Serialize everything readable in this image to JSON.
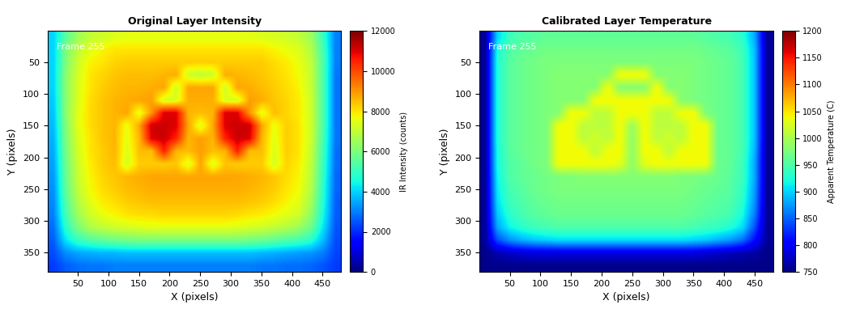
{
  "chart_data": [
    {
      "type": "heatmap",
      "title": "Original Layer Intensity",
      "x_label": "X (pixels)",
      "y_label": "Y (pixels)",
      "annotation": "Frame 255",
      "color": "jet",
      "x": [
        10,
        30,
        50,
        70,
        90,
        110,
        130,
        150,
        170,
        190,
        210,
        230,
        250,
        270,
        290,
        310,
        330,
        350,
        370,
        390,
        410,
        430,
        450,
        470
      ],
      "y": [
        10,
        30,
        50,
        70,
        90,
        110,
        130,
        150,
        170,
        190,
        210,
        230,
        250,
        270,
        290,
        310,
        330,
        350,
        370
      ],
      "xlim": [
        0.5,
        480.5
      ],
      "ylim": [
        380.5,
        0.5
      ],
      "xticks": [
        50,
        100,
        150,
        200,
        250,
        300,
        350,
        400,
        450
      ],
      "yticks": [
        50,
        100,
        150,
        200,
        250,
        300,
        350
      ],
      "colorbar": {
        "label": "IR Intensity (counts)",
        "lim": [
          0,
          12000
        ],
        "ticks": [
          0,
          2000,
          4000,
          6000,
          8000,
          10000,
          12000
        ]
      },
      "cells": [
        [
          4000,
          5500,
          6500,
          7000,
          7200,
          7400,
          7500,
          7500,
          7500,
          7500,
          7500,
          7500,
          7500,
          7500,
          7500,
          7500,
          7500,
          7400,
          7300,
          7200,
          7000,
          6500,
          5000,
          3000
        ],
        [
          4000,
          6000,
          7000,
          7500,
          7800,
          8000,
          8000,
          8000,
          8000,
          8000,
          8000,
          8000,
          8000,
          8000,
          8000,
          8000,
          8000,
          8000,
          7800,
          7600,
          7400,
          6800,
          5200,
          3000
        ],
        [
          4000,
          6000,
          7200,
          7800,
          8000,
          8200,
          8300,
          8300,
          8300,
          8300,
          8300,
          8300,
          8300,
          8300,
          8300,
          8300,
          8300,
          8300,
          8100,
          7900,
          7600,
          7000,
          5300,
          3000
        ],
        [
          4000,
          6200,
          7300,
          8000,
          8200,
          8400,
          8500,
          8500,
          8500,
          8600,
          8700,
          7200,
          7000,
          7200,
          8700,
          8600,
          8500,
          8400,
          8200,
          8000,
          7700,
          7100,
          5300,
          2900
        ],
        [
          4000,
          6200,
          7400,
          8000,
          8300,
          8500,
          8600,
          8600,
          8700,
          8800,
          7200,
          8800,
          8800,
          8800,
          7200,
          8800,
          8700,
          8500,
          8300,
          8100,
          7800,
          7100,
          5300,
          2900
        ],
        [
          3900,
          6200,
          7400,
          8100,
          8400,
          8600,
          8700,
          8800,
          8900,
          7300,
          7400,
          8700,
          8700,
          8700,
          7400,
          7300,
          8900,
          8700,
          8400,
          8200,
          7900,
          7200,
          5300,
          2900
        ],
        [
          3800,
          6200,
          7500,
          8100,
          8400,
          8600,
          8800,
          7500,
          9000,
          11000,
          11000,
          8600,
          8500,
          8600,
          11000,
          11000,
          9000,
          7500,
          8500,
          8200,
          7900,
          7200,
          5300,
          2900
        ],
        [
          3700,
          6100,
          7500,
          8100,
          8400,
          8600,
          7600,
          8800,
          11200,
          11200,
          11000,
          8800,
          7400,
          8800,
          11000,
          11200,
          11200,
          8800,
          7600,
          8300,
          8000,
          7200,
          5300,
          2900
        ],
        [
          3600,
          6000,
          7400,
          8000,
          8400,
          8600,
          7500,
          8600,
          11000,
          11200,
          10500,
          8600,
          8900,
          8600,
          10500,
          11200,
          11000,
          8600,
          7500,
          8300,
          8000,
          7200,
          5200,
          2900
        ],
        [
          3500,
          5900,
          7300,
          8000,
          8300,
          8600,
          7400,
          8500,
          8500,
          10500,
          8600,
          8500,
          8900,
          8500,
          8600,
          10500,
          8500,
          8500,
          7400,
          8300,
          8000,
          7100,
          5100,
          2800
        ],
        [
          3400,
          5800,
          7200,
          7900,
          8300,
          8500,
          7300,
          8300,
          8300,
          8300,
          8400,
          7400,
          8800,
          7400,
          8400,
          8300,
          8300,
          8300,
          7300,
          8200,
          7900,
          7000,
          5000,
          2800
        ],
        [
          3300,
          5700,
          7100,
          7800,
          8200,
          8400,
          8600,
          8700,
          8800,
          8800,
          8800,
          8800,
          8800,
          8800,
          8800,
          8800,
          8700,
          8600,
          8400,
          8100,
          7800,
          6900,
          4900,
          2700
        ],
        [
          3200,
          5600,
          7000,
          7700,
          8100,
          8300,
          8500,
          8600,
          8700,
          8700,
          8700,
          8700,
          8700,
          8700,
          8700,
          8700,
          8600,
          8500,
          8300,
          8000,
          7700,
          6800,
          4800,
          2700
        ],
        [
          3100,
          5400,
          6800,
          7500,
          7900,
          8100,
          8300,
          8400,
          8500,
          8500,
          8500,
          8500,
          8500,
          8500,
          8500,
          8500,
          8400,
          8300,
          8100,
          7800,
          7500,
          6600,
          4700,
          2600
        ],
        [
          3000,
          5200,
          6500,
          7200,
          7600,
          7800,
          8000,
          8100,
          8100,
          8200,
          8200,
          8200,
          8200,
          8200,
          8200,
          8100,
          8000,
          7900,
          7700,
          7500,
          7200,
          6300,
          4500,
          2600
        ],
        [
          2800,
          4800,
          6000,
          6700,
          7000,
          7200,
          7300,
          7400,
          7500,
          7500,
          7500,
          7500,
          7500,
          7500,
          7500,
          7400,
          7300,
          7200,
          7000,
          6800,
          6500,
          5800,
          4200,
          2500
        ],
        [
          2600,
          4200,
          5000,
          5400,
          5600,
          5800,
          5900,
          6000,
          6000,
          6000,
          6000,
          6000,
          6000,
          6000,
          6000,
          6000,
          5900,
          5800,
          5600,
          5400,
          5200,
          4800,
          3700,
          2400
        ],
        [
          2400,
          3200,
          3500,
          3600,
          3700,
          3700,
          3800,
          3800,
          3800,
          3800,
          3800,
          3800,
          3800,
          3800,
          3800,
          3800,
          3800,
          3700,
          3600,
          3500,
          3400,
          3300,
          3000,
          2300
        ],
        [
          2200,
          2600,
          2800,
          2900,
          2900,
          3000,
          3000,
          3000,
          3000,
          3000,
          3000,
          3000,
          3000,
          3000,
          3000,
          3000,
          3000,
          2900,
          2900,
          2800,
          2800,
          2700,
          2500,
          2200
        ]
      ]
    },
    {
      "type": "heatmap",
      "title": "Calibrated Layer Temperature",
      "x_label": "X (pixels)",
      "y_label": "Y (pixels)",
      "annotation": "Frame 255",
      "color": "jet",
      "x": [
        10,
        30,
        50,
        70,
        90,
        110,
        130,
        150,
        170,
        190,
        210,
        230,
        250,
        270,
        290,
        310,
        330,
        350,
        370,
        390,
        410,
        430,
        450,
        470
      ],
      "y": [
        10,
        30,
        50,
        70,
        90,
        110,
        130,
        150,
        170,
        190,
        210,
        230,
        250,
        270,
        290,
        310,
        330,
        350,
        370
      ],
      "xlim": [
        0.5,
        480.5
      ],
      "ylim": [
        380.5,
        0.5
      ],
      "xticks": [
        50,
        100,
        150,
        200,
        250,
        300,
        350,
        400,
        450
      ],
      "yticks": [
        50,
        100,
        150,
        200,
        250,
        300,
        350
      ],
      "colorbar": {
        "label": "Apparent Temperature (C)",
        "lim": [
          750,
          1200
        ],
        "ticks": [
          750,
          800,
          850,
          900,
          950,
          1000,
          1050,
          1100,
          1150,
          1200
        ]
      },
      "cells": [
        [
          760,
          900,
          940,
          950,
          955,
          960,
          960,
          960,
          960,
          960,
          960,
          960,
          960,
          960,
          960,
          960,
          960,
          960,
          955,
          950,
          945,
          930,
          880,
          760
        ],
        [
          760,
          920,
          950,
          960,
          965,
          970,
          970,
          970,
          970,
          970,
          970,
          970,
          970,
          970,
          970,
          970,
          970,
          970,
          965,
          960,
          955,
          940,
          890,
          760
        ],
        [
          760,
          925,
          955,
          965,
          970,
          975,
          975,
          975,
          975,
          975,
          975,
          975,
          975,
          975,
          975,
          975,
          975,
          975,
          970,
          965,
          960,
          945,
          890,
          760
        ],
        [
          760,
          925,
          955,
          965,
          970,
          975,
          980,
          980,
          980,
          980,
          980,
          1040,
          1040,
          1040,
          980,
          980,
          980,
          975,
          970,
          965,
          960,
          945,
          890,
          760
        ],
        [
          760,
          925,
          955,
          965,
          970,
          975,
          980,
          980,
          980,
          980,
          1040,
          980,
          980,
          980,
          1040,
          980,
          980,
          975,
          970,
          965,
          960,
          945,
          890,
          760
        ],
        [
          760,
          925,
          955,
          965,
          970,
          975,
          980,
          980,
          980,
          1040,
          1040,
          1040,
          1040,
          1040,
          1040,
          1040,
          980,
          975,
          970,
          965,
          960,
          945,
          890,
          760
        ],
        [
          760,
          925,
          955,
          965,
          970,
          975,
          980,
          1040,
          1040,
          1010,
          1010,
          1040,
          1040,
          1040,
          1010,
          1010,
          1040,
          1040,
          975,
          965,
          960,
          945,
          890,
          760
        ],
        [
          760,
          925,
          955,
          965,
          970,
          975,
          1040,
          1040,
          1010,
          1010,
          1010,
          1040,
          990,
          1040,
          1010,
          1010,
          1010,
          1040,
          1040,
          965,
          960,
          945,
          890,
          760
        ],
        [
          760,
          925,
          955,
          965,
          970,
          975,
          1040,
          1040,
          1010,
          1020,
          1010,
          1040,
          985,
          1040,
          1010,
          1020,
          1010,
          1040,
          1040,
          965,
          960,
          945,
          890,
          760
        ],
        [
          760,
          920,
          955,
          965,
          970,
          975,
          1040,
          1040,
          1040,
          1010,
          1040,
          1040,
          985,
          1040,
          1040,
          1010,
          1040,
          1040,
          1040,
          965,
          960,
          945,
          885,
          760
        ],
        [
          760,
          920,
          950,
          960,
          970,
          975,
          1040,
          1040,
          1040,
          1040,
          1040,
          1030,
          985,
          1030,
          1040,
          1040,
          1040,
          1040,
          1040,
          965,
          960,
          940,
          880,
          760
        ],
        [
          760,
          915,
          950,
          960,
          965,
          970,
          975,
          975,
          980,
          980,
          980,
          980,
          980,
          980,
          980,
          980,
          975,
          975,
          970,
          965,
          955,
          940,
          880,
          760
        ],
        [
          760,
          910,
          945,
          955,
          965,
          970,
          975,
          975,
          975,
          975,
          975,
          975,
          975,
          975,
          975,
          975,
          975,
          970,
          965,
          960,
          955,
          935,
          875,
          760
        ],
        [
          760,
          905,
          940,
          950,
          960,
          965,
          970,
          970,
          970,
          970,
          970,
          970,
          970,
          970,
          970,
          970,
          970,
          965,
          960,
          955,
          950,
          930,
          870,
          760
        ],
        [
          760,
          895,
          930,
          945,
          955,
          960,
          965,
          965,
          965,
          965,
          965,
          965,
          965,
          965,
          965,
          965,
          965,
          960,
          955,
          950,
          945,
          920,
          860,
          760
        ],
        [
          760,
          880,
          915,
          930,
          940,
          945,
          950,
          950,
          950,
          950,
          950,
          950,
          950,
          950,
          950,
          950,
          950,
          945,
          940,
          935,
          925,
          905,
          840,
          760
        ],
        [
          760,
          840,
          870,
          885,
          895,
          900,
          905,
          905,
          905,
          905,
          905,
          905,
          905,
          905,
          905,
          905,
          905,
          900,
          895,
          885,
          875,
          855,
          810,
          760
        ],
        [
          755,
          770,
          780,
          785,
          790,
          790,
          790,
          790,
          790,
          790,
          790,
          790,
          790,
          790,
          790,
          790,
          790,
          790,
          785,
          780,
          775,
          770,
          765,
          755
        ],
        [
          755,
          755,
          755,
          755,
          755,
          755,
          755,
          755,
          755,
          755,
          755,
          755,
          755,
          755,
          755,
          755,
          755,
          755,
          755,
          755,
          755,
          755,
          755,
          755
        ]
      ]
    }
  ]
}
